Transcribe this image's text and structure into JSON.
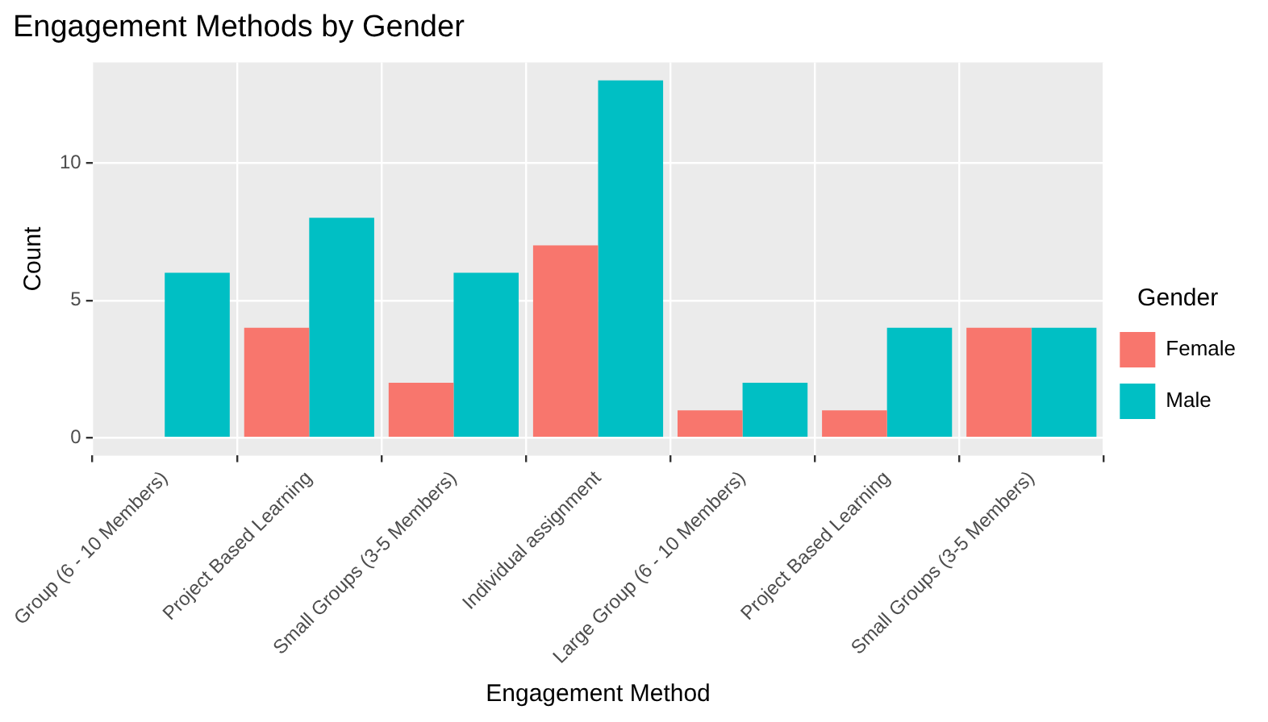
{
  "chart_data": {
    "type": "bar",
    "title": "Engagement Methods by Gender",
    "xlabel": "Engagement Method",
    "ylabel": "Count",
    "legend_title": "Gender",
    "categories": [
      "Group (6 - 10 Members)",
      "Project Based Learning",
      "Small Groups (3-5 Members)",
      "Individual assignment",
      "Large Group (6 - 10 Members)",
      "Project Based Learning",
      "Small Groups (3-5 Members)"
    ],
    "series": [
      {
        "name": "Female",
        "color": "#f8766d",
        "values": [
          null,
          4,
          2,
          7,
          1,
          1,
          4
        ]
      },
      {
        "name": "Male",
        "color": "#00bfc4",
        "values": [
          6,
          8,
          6,
          13,
          2,
          4,
          4
        ]
      }
    ],
    "ylim": [
      -0.65,
      13.65
    ],
    "yticks": [
      0,
      5,
      10
    ],
    "grid": true,
    "legend": "right"
  }
}
